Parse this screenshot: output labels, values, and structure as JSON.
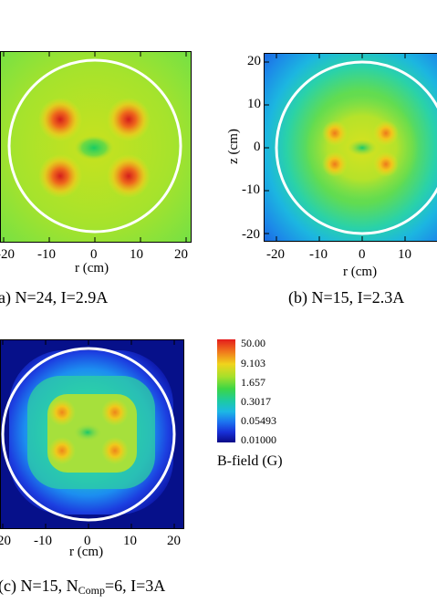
{
  "figure": {
    "panels": [
      {
        "id": "a",
        "caption": "a) N=24, I=2.9A",
        "xlabel": "r (cm)",
        "ylabel": "",
        "xticks": [
          "-20",
          "-10",
          "0",
          "10",
          "20"
        ],
        "yticks": [],
        "colors": {
          "background": "#86e43c",
          "inner": "#cfe11e",
          "hotspot": "#e0321e",
          "center": "#18cf5c",
          "circle": "#ffffff"
        }
      },
      {
        "id": "b",
        "caption": "(b) N=15, I=2.3A",
        "xlabel": "r (cm)",
        "ylabel": "z (cm)",
        "xticks": [
          "-20",
          "-10",
          "0",
          "10"
        ],
        "yticks": [
          "20",
          "10",
          "0",
          "-10",
          "-20"
        ],
        "colors": {
          "background": "#1f6ee6",
          "inner": "#9ae23c",
          "hotspot": "#ec8c1e",
          "center": "#1ac96a",
          "circle": "#ffffff"
        }
      },
      {
        "id": "c",
        "caption_prefix": "(c) N=15, N",
        "caption_sub": "Comp",
        "caption_suffix": "=6, I=3A",
        "xlabel": "r (cm)",
        "ylabel": "",
        "xticks": [
          "20",
          "-10",
          "0",
          "10",
          "20"
        ],
        "yticks": [],
        "colors": {
          "background": "#06128a",
          "inner": "#a8e03c",
          "hotspot": "#ec8c1e",
          "center": "#1ac96a",
          "circle": "#ffffff"
        }
      }
    ],
    "colorbar": {
      "labels": [
        "50.00",
        "9.103",
        "1.657",
        "0.3017",
        "0.05493",
        "0.01000"
      ],
      "title": "B-field (G)",
      "colors": [
        "#e8201c",
        "#f08c1c",
        "#f0e01c",
        "#7ce024",
        "#1cd070",
        "#18c8d8",
        "#1c70f0",
        "#1828d8",
        "#0c0c90"
      ]
    }
  }
}
